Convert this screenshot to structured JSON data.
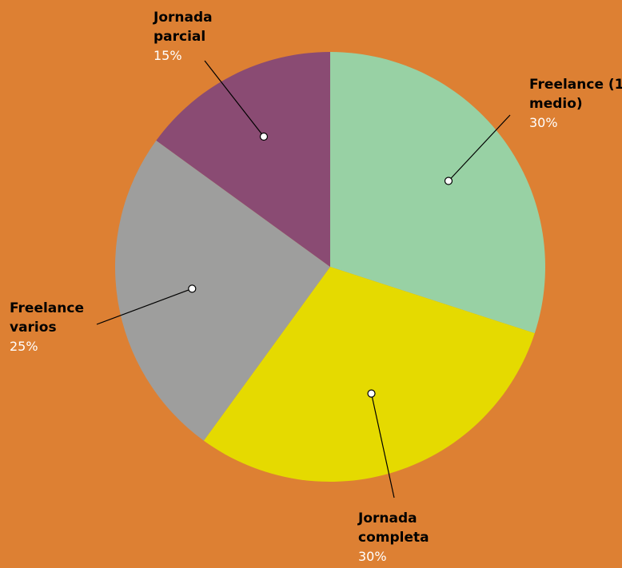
{
  "chart_data": {
    "type": "pie",
    "title": "",
    "background": "#DD8033",
    "slices": [
      {
        "label": [
          "Freelance (1",
          "medio)"
        ],
        "display_label": "Freelance (1 medio)",
        "value": 30,
        "percent_label": "30%",
        "color": "#98D1A4"
      },
      {
        "label": [
          "Jornada",
          "completa"
        ],
        "display_label": "Jornada completa",
        "value": 30,
        "percent_label": "30%",
        "color": "#E5DA00"
      },
      {
        "label": [
          "Freelance",
          "varios"
        ],
        "display_label": "Freelance varios",
        "value": 25,
        "percent_label": "25%",
        "color": "#9E9E9D"
      },
      {
        "label": [
          "Jornada",
          "parcial"
        ],
        "display_label": "Jornada parcial",
        "value": 15,
        "percent_label": "15%",
        "color": "#8A4B73"
      }
    ]
  }
}
